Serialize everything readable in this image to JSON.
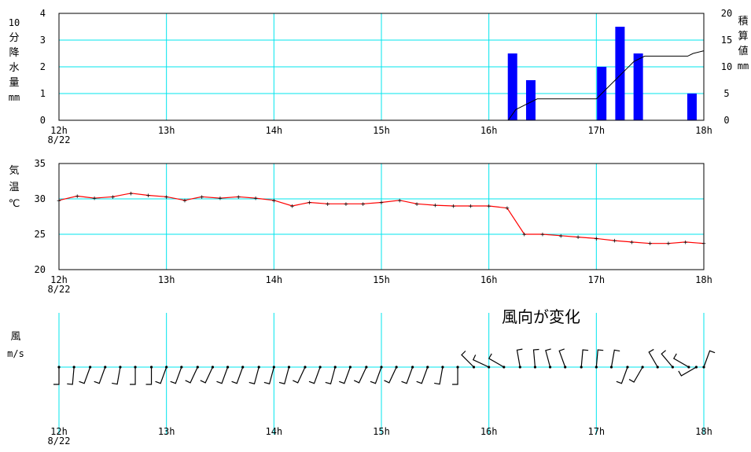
{
  "chart_data": [
    {
      "type": "bar",
      "ylabel_left": [
        "10",
        "分",
        "降",
        "水",
        "量",
        "mm"
      ],
      "ylabel_right": [
        "積",
        "算",
        "値",
        "mm"
      ],
      "ylim": [
        0,
        4
      ],
      "yticks": [
        "0",
        "1",
        "2",
        "3",
        "4"
      ],
      "y2lim": [
        0,
        20
      ],
      "y2ticks": [
        "0",
        "5",
        "10",
        "15",
        "20"
      ],
      "xlim_hours": [
        12,
        18
      ],
      "xticks": [
        "12h",
        "13h",
        "14h",
        "15h",
        "16h",
        "17h",
        "18h"
      ],
      "xdate": "8/22",
      "grid": true,
      "bar_color": "#0000ff",
      "bars": [
        {
          "x": 16.22,
          "value": 2.5
        },
        {
          "x": 16.39,
          "value": 1.5
        },
        {
          "x": 17.05,
          "value": 2.0
        },
        {
          "x": 17.22,
          "value": 3.5
        },
        {
          "x": 17.39,
          "value": 2.5
        },
        {
          "x": 17.89,
          "value": 1.0
        }
      ],
      "cumulative": {
        "color": "#000000",
        "points": [
          [
            12.0,
            0
          ],
          [
            16.18,
            0
          ],
          [
            16.25,
            2.0
          ],
          [
            16.35,
            3.0
          ],
          [
            16.45,
            4.0
          ],
          [
            16.6,
            4.0
          ],
          [
            17.0,
            4.0
          ],
          [
            17.05,
            5.0
          ],
          [
            17.15,
            7.0
          ],
          [
            17.25,
            9.0
          ],
          [
            17.35,
            11.0
          ],
          [
            17.45,
            12.0
          ],
          [
            17.5,
            12.0
          ],
          [
            17.85,
            12.0
          ],
          [
            17.9,
            12.5
          ],
          [
            18.0,
            13.0
          ]
        ]
      }
    },
    {
      "type": "line",
      "ylabel": [
        "気",
        "温",
        "℃"
      ],
      "ylim": [
        20,
        35
      ],
      "yticks": [
        "20",
        "25",
        "30",
        "35"
      ],
      "xlim_hours": [
        12,
        18
      ],
      "xticks": [
        "12h",
        "13h",
        "14h",
        "15h",
        "16h",
        "17h",
        "18h"
      ],
      "xdate": "8/22",
      "grid": true,
      "line_color": "#ff0000",
      "series": [
        {
          "points": [
            [
              12.0,
              29.8
            ],
            [
              12.17,
              30.4
            ],
            [
              12.33,
              30.1
            ],
            [
              12.5,
              30.3
            ],
            [
              12.67,
              30.8
            ],
            [
              12.83,
              30.5
            ],
            [
              13.0,
              30.3
            ],
            [
              13.17,
              29.8
            ],
            [
              13.33,
              30.3
            ],
            [
              13.5,
              30.1
            ],
            [
              13.67,
              30.3
            ],
            [
              13.83,
              30.1
            ],
            [
              14.0,
              29.8
            ],
            [
              14.17,
              29.0
            ],
            [
              14.33,
              29.5
            ],
            [
              14.5,
              29.3
            ],
            [
              14.67,
              29.3
            ],
            [
              14.83,
              29.3
            ],
            [
              15.0,
              29.5
            ],
            [
              15.17,
              29.8
            ],
            [
              15.33,
              29.3
            ],
            [
              15.5,
              29.1
            ],
            [
              15.67,
              29.0
            ],
            [
              15.83,
              29.0
            ],
            [
              16.0,
              29.0
            ],
            [
              16.17,
              28.7
            ],
            [
              16.33,
              25.0
            ],
            [
              16.5,
              25.0
            ],
            [
              16.67,
              24.8
            ],
            [
              16.83,
              24.6
            ],
            [
              17.0,
              24.4
            ],
            [
              17.17,
              24.1
            ],
            [
              17.33,
              23.9
            ],
            [
              17.5,
              23.7
            ],
            [
              17.67,
              23.7
            ],
            [
              17.83,
              23.9
            ],
            [
              18.0,
              23.7
            ]
          ]
        }
      ]
    },
    {
      "type": "wind_barbs",
      "ylabel": [
        "風",
        "m/s"
      ],
      "xlim_hours": [
        12,
        18
      ],
      "xticks": [
        "12h",
        "13h",
        "14h",
        "15h",
        "16h",
        "17h",
        "18h"
      ],
      "xdate": "8/22",
      "annotation": "風向が変化",
      "barbs": [
        {
          "x": 12.0,
          "dir": 180
        },
        {
          "x": 12.14,
          "dir": 185
        },
        {
          "x": 12.29,
          "dir": 200
        },
        {
          "x": 12.43,
          "dir": 200
        },
        {
          "x": 12.57,
          "dir": 190
        },
        {
          "x": 12.71,
          "dir": 180
        },
        {
          "x": 12.86,
          "dir": 180
        },
        {
          "x": 13.0,
          "dir": 200
        },
        {
          "x": 13.14,
          "dir": 200
        },
        {
          "x": 13.29,
          "dir": 205
        },
        {
          "x": 13.43,
          "dir": 205
        },
        {
          "x": 13.57,
          "dir": 200
        },
        {
          "x": 13.71,
          "dir": 200
        },
        {
          "x": 13.86,
          "dir": 195
        },
        {
          "x": 14.0,
          "dir": 195
        },
        {
          "x": 14.14,
          "dir": 195
        },
        {
          "x": 14.29,
          "dir": 205
        },
        {
          "x": 14.43,
          "dir": 200
        },
        {
          "x": 14.57,
          "dir": 195
        },
        {
          "x": 14.71,
          "dir": 200
        },
        {
          "x": 14.86,
          "dir": 205
        },
        {
          "x": 15.0,
          "dir": 200
        },
        {
          "x": 15.14,
          "dir": 205
        },
        {
          "x": 15.29,
          "dir": 200
        },
        {
          "x": 15.43,
          "dir": 200
        },
        {
          "x": 15.57,
          "dir": 190
        },
        {
          "x": 15.71,
          "dir": 180
        },
        {
          "x": 15.86,
          "dir": 315
        },
        {
          "x": 16.0,
          "dir": 295
        },
        {
          "x": 16.14,
          "dir": 300
        },
        {
          "x": 16.29,
          "dir": 350
        },
        {
          "x": 16.43,
          "dir": 355
        },
        {
          "x": 16.57,
          "dir": 345
        },
        {
          "x": 16.71,
          "dir": 340
        },
        {
          "x": 16.86,
          "dir": 5
        },
        {
          "x": 17.0,
          "dir": 5
        },
        {
          "x": 17.14,
          "dir": 10
        },
        {
          "x": 17.29,
          "dir": 200
        },
        {
          "x": 17.43,
          "dir": 210
        },
        {
          "x": 17.57,
          "dir": 330
        },
        {
          "x": 17.71,
          "dir": 320
        },
        {
          "x": 17.86,
          "dir": 300
        },
        {
          "x": 17.93,
          "dir": 240
        },
        {
          "x": 18.0,
          "dir": 20
        }
      ]
    }
  ],
  "colors": {
    "grid": "#00e5ee",
    "axis": "#000000",
    "rain": "#0000ff",
    "temperature": "#ff0000"
  }
}
